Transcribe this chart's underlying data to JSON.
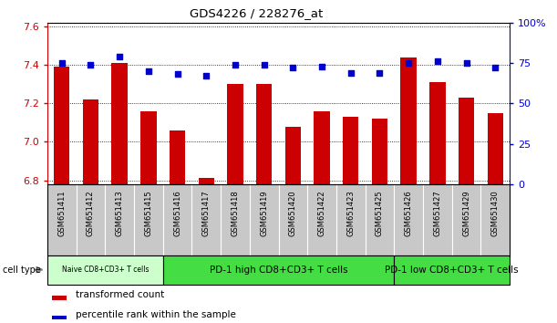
{
  "title": "GDS4226 / 228276_at",
  "samples": [
    "GSM651411",
    "GSM651412",
    "GSM651413",
    "GSM651415",
    "GSM651416",
    "GSM651417",
    "GSM651418",
    "GSM651419",
    "GSM651420",
    "GSM651422",
    "GSM651423",
    "GSM651425",
    "GSM651426",
    "GSM651427",
    "GSM651429",
    "GSM651430"
  ],
  "bar_values": [
    7.39,
    7.22,
    7.41,
    7.16,
    7.06,
    6.81,
    7.3,
    7.3,
    7.08,
    7.16,
    7.13,
    7.12,
    7.44,
    7.31,
    7.23,
    7.15
  ],
  "dot_values": [
    75,
    74,
    79,
    70,
    68,
    67,
    74,
    74,
    72,
    73,
    69,
    69,
    75,
    76,
    75,
    72
  ],
  "ylim_left": [
    6.78,
    7.62
  ],
  "ylim_right": [
    0,
    100
  ],
  "yticks_left": [
    6.8,
    7.0,
    7.2,
    7.4,
    7.6
  ],
  "yticks_right": [
    0,
    25,
    50,
    75,
    100
  ],
  "bar_color": "#cc0000",
  "dot_color": "#0000cc",
  "cell_type_groups": [
    {
      "label": "Naive CD8+CD3+ T cells",
      "start": 0,
      "end": 3
    },
    {
      "label": "PD-1 high CD8+CD3+ T cells",
      "start": 4,
      "end": 11
    },
    {
      "label": "PD-1 low CD8+CD3+ T cells",
      "start": 12,
      "end": 15
    }
  ],
  "group_colors": [
    "#ccffcc",
    "#44dd44",
    "#44dd44"
  ],
  "legend_bar_label": "transformed count",
  "legend_dot_label": "percentile rank within the sample",
  "cell_type_label": "cell type",
  "bg_color": "#ffffff",
  "xtick_bg_color": "#c8c8c8"
}
